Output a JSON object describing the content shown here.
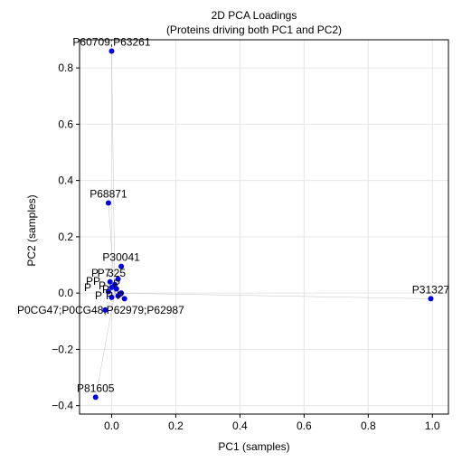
{
  "chart_data": {
    "type": "scatter",
    "title": "2D PCA Loadings",
    "subtitle": "(Proteins driving both PC1 and PC2)",
    "xlabel": "PC1 (samples)",
    "ylabel": "PC2 (samples)",
    "xlim": [
      -0.1,
      1.05
    ],
    "ylim": [
      -0.43,
      0.9
    ],
    "xticks": [
      0.0,
      0.2,
      0.4,
      0.6,
      0.8,
      1.0
    ],
    "xtick_labels": [
      "0.0",
      "0.2",
      "0.4",
      "0.6",
      "0.8",
      "1.0"
    ],
    "yticks": [
      -0.4,
      -0.2,
      0.0,
      0.2,
      0.4,
      0.6,
      0.8
    ],
    "ytick_labels": [
      "−0.4",
      "−0.2",
      "0.0",
      "0.2",
      "0.4",
      "0.6",
      "0.8"
    ],
    "grid": true,
    "point_color": "#0000ee",
    "line_color": "#999999",
    "points": [
      {
        "label": "P60709;P63261",
        "x": 0.0,
        "y": 0.86
      },
      {
        "label": "P68871",
        "x": -0.01,
        "y": 0.32
      },
      {
        "label": "P30041",
        "x": 0.03,
        "y": 0.095
      },
      {
        "label": "P31327",
        "x": 0.995,
        "y": -0.02
      },
      {
        "label": "P0CG47;P0CG48;P62979;P62987",
        "x": -0.02,
        "y": -0.06
      },
      {
        "label": "P81605",
        "x": -0.05,
        "y": -0.37
      },
      {
        "label": "",
        "x": 0.02,
        "y": 0.05
      },
      {
        "label": "",
        "x": 0.01,
        "y": 0.03
      },
      {
        "label": "",
        "x": 0.0,
        "y": 0.02
      },
      {
        "label": "",
        "x": -0.01,
        "y": 0.005
      },
      {
        "label": "",
        "x": 0.03,
        "y": 0.0
      },
      {
        "label": "",
        "x": 0.02,
        "y": -0.01
      },
      {
        "label": "",
        "x": 0.0,
        "y": -0.015
      },
      {
        "label": "",
        "x": -0.005,
        "y": 0.04
      },
      {
        "label": "",
        "x": 0.04,
        "y": -0.02
      },
      {
        "label": "",
        "x": 0.015,
        "y": 0.015
      }
    ],
    "cluster_label_fragments": [
      "P7",
      "P",
      "P",
      "P",
      "P",
      "325",
      "P",
      "P",
      "P",
      "P",
      "P",
      "P"
    ]
  }
}
